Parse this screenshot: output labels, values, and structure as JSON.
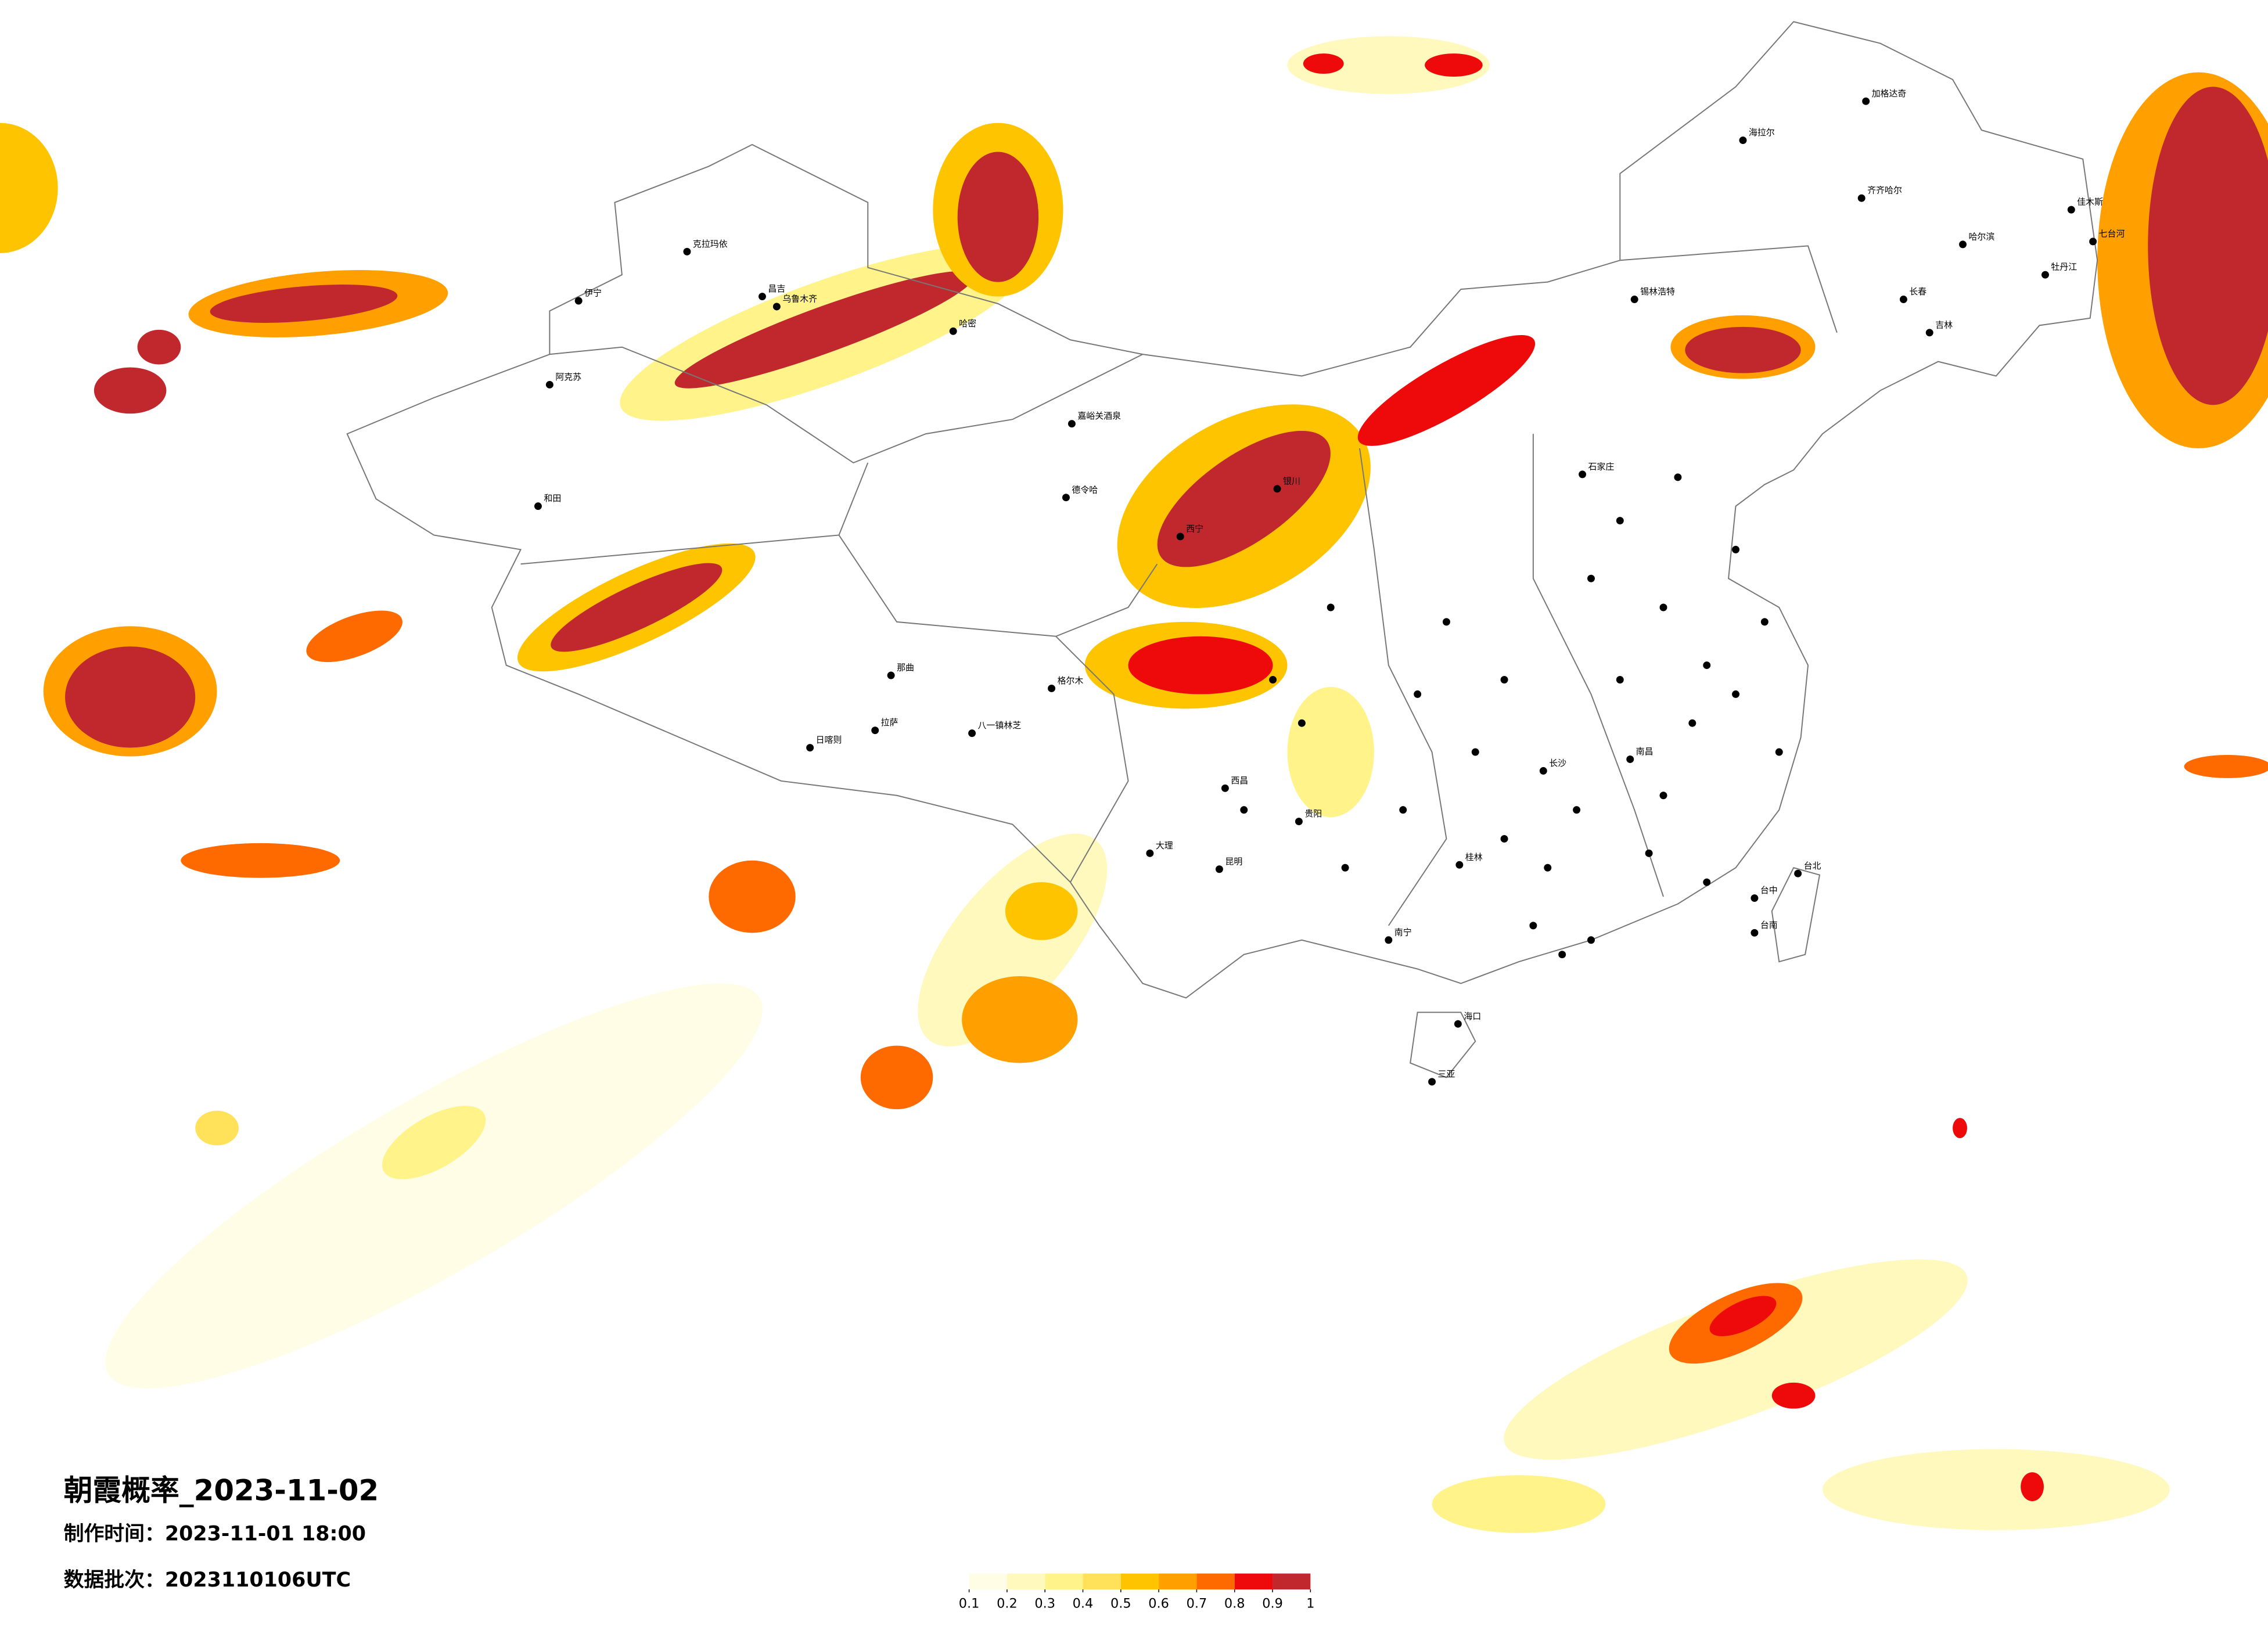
{
  "title": "朝霞概率_2023-11-02",
  "production_time": "制作时间：2023-11-01 18:00",
  "data_batch": "数据批次：2023110106UTC",
  "colorbar": {
    "colors": [
      "#fffde6",
      "#fff9bd",
      "#fff38a",
      "#ffe15a",
      "#ffc400",
      "#ff9f00",
      "#ff6a00",
      "#ee0a0a",
      "#c0282d"
    ],
    "ticks": [
      0.1,
      0.2,
      0.3,
      0.4,
      0.5,
      0.6,
      0.7,
      0.8,
      0.9,
      1
    ]
  },
  "cities": [
    "克拉玛依",
    "伊宁",
    "阿克苏",
    "和田",
    "昌吉",
    "乌鲁木齐",
    "哈密",
    "嘉峪关酒泉",
    "德令哈",
    "格尔木",
    "那曲",
    "日喀则",
    "拉萨",
    "八一镇林芝",
    "海拉尔",
    "加格达奇",
    "齐齐哈尔",
    "哈尔滨",
    "长春",
    "锡林浩特",
    "石家庄",
    "西宁",
    "贵阳",
    "昆明",
    "南宁",
    "海口",
    "三亚",
    "台北",
    "台中",
    "台南",
    "南昌",
    "长沙",
    "吉林",
    "牡丹江",
    "佳木斯",
    "七台河",
    "银川",
    "西昌",
    "大理",
    "桂林"
  ]
}
